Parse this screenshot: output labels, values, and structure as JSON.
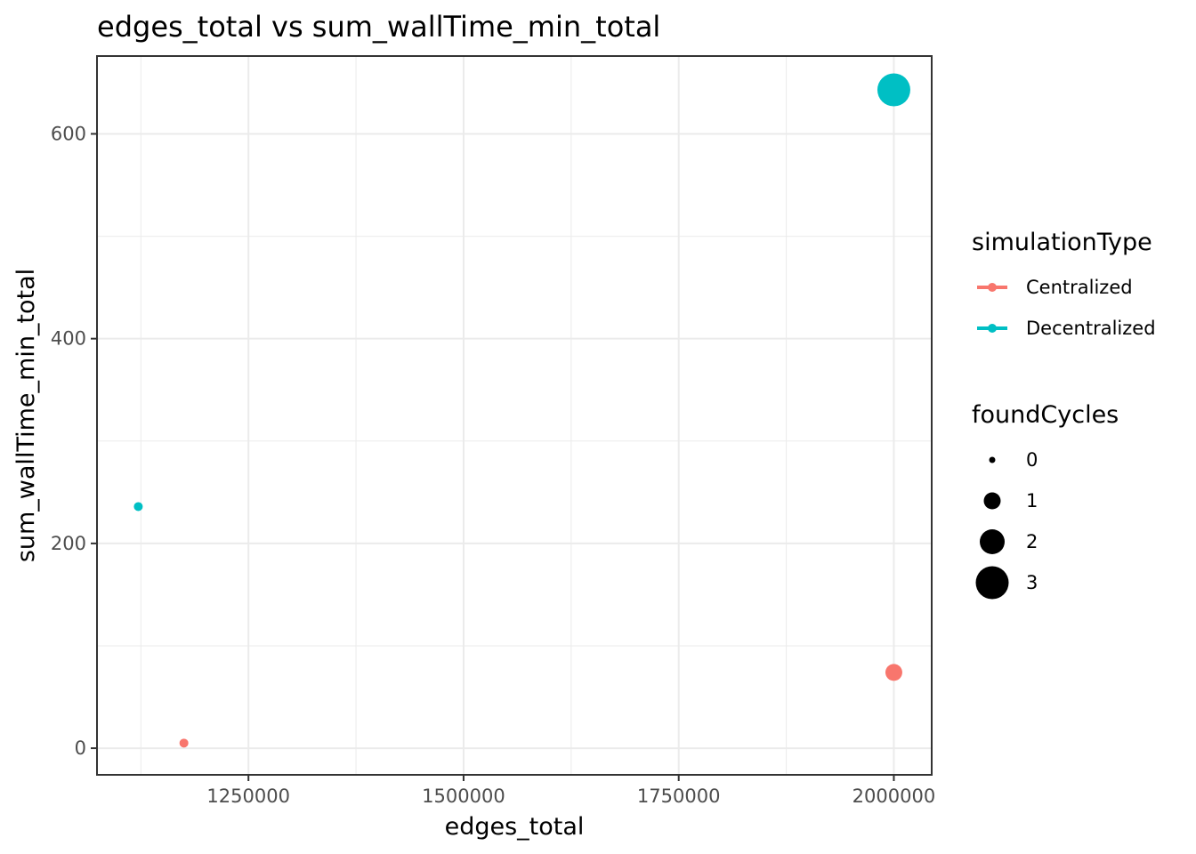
{
  "chart_data": {
    "type": "scatter",
    "title": "edges_total  vs  sum_wallTime_min_total",
    "xlabel": "edges_total",
    "ylabel": "sum_wallTime_min_total",
    "xlim": [
      1074000,
      2044000
    ],
    "ylim": [
      -26,
      676
    ],
    "x_ticks": [
      1250000,
      1500000,
      1750000,
      2000000
    ],
    "x_minor_ticks": [
      1125000,
      1375000,
      1625000,
      1875000
    ],
    "y_ticks": [
      0,
      200,
      400,
      600
    ],
    "y_minor_ticks": [
      100,
      300,
      500
    ],
    "grid": true,
    "legend_position": "right",
    "series": [
      {
        "name": "Centralized",
        "color": "#F8766D",
        "points": [
          {
            "x": 1175000,
            "y": 5,
            "foundCycles": 0
          },
          {
            "x": 2000000,
            "y": 74,
            "foundCycles": 1
          }
        ]
      },
      {
        "name": "Decentralized",
        "color": "#00BFC4",
        "points": [
          {
            "x": 1122000,
            "y": 236,
            "foundCycles": 0
          },
          {
            "x": 2000000,
            "y": 643,
            "foundCycles": 3
          }
        ]
      }
    ],
    "legend_color_title": "simulationType",
    "legend_size_title": "foundCycles",
    "size_legend": [
      {
        "label": "0",
        "value": 0
      },
      {
        "label": "1",
        "value": 1
      },
      {
        "label": "2",
        "value": 2
      },
      {
        "label": "3",
        "value": 3
      }
    ]
  }
}
